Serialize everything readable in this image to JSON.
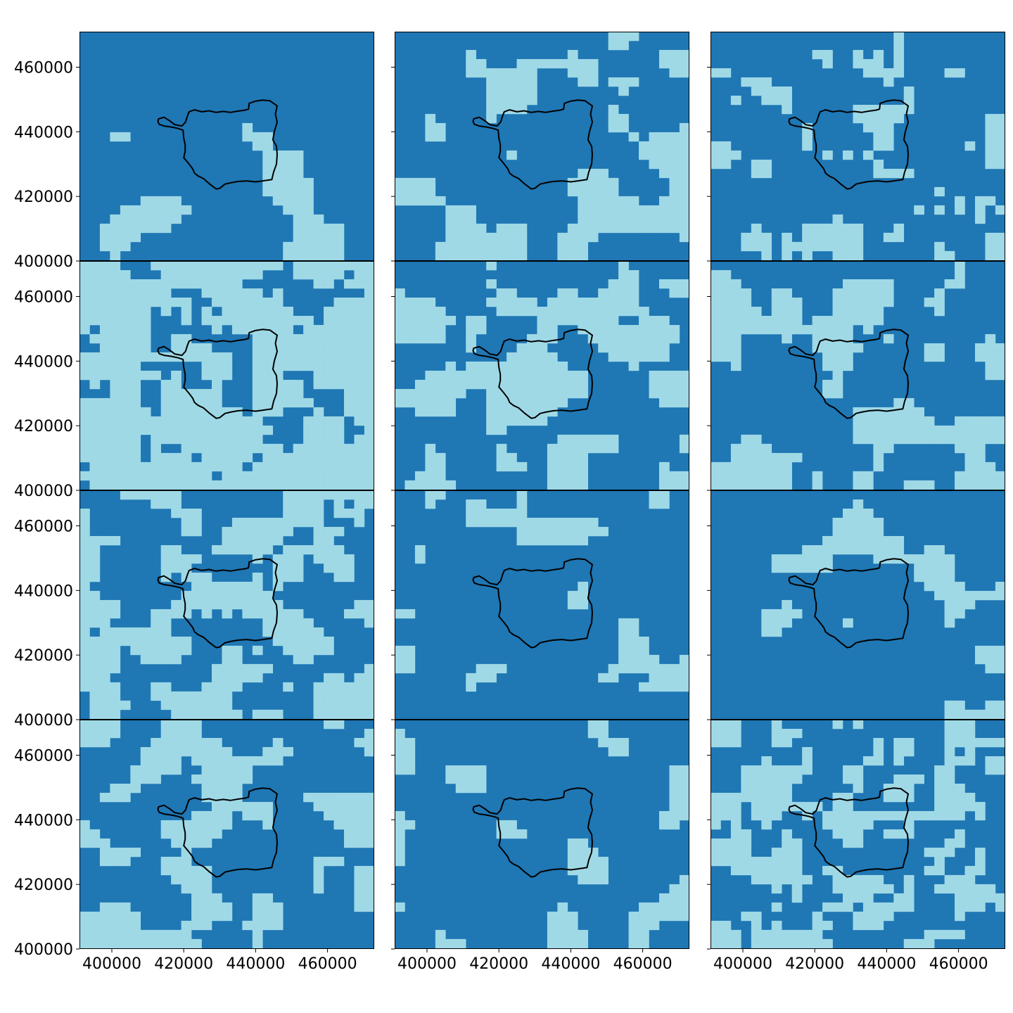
{
  "chart_data": {
    "type": "heatmap",
    "layout": {
      "rows": 4,
      "cols": 3
    },
    "title": "",
    "xlabel": "",
    "ylabel": "",
    "xlim": [
      391000,
      473000
    ],
    "ylim": [
      400000,
      471000
    ],
    "x_ticks": [
      400000,
      420000,
      440000,
      460000
    ],
    "x_tick_labels": [
      "400000",
      "420000",
      "440000",
      "460000"
    ],
    "y_ticks": [
      400000,
      420000,
      440000,
      460000
    ],
    "y_tick_labels": [
      "400000",
      "420000",
      "440000",
      "460000"
    ],
    "grid": false,
    "legend": null,
    "grid_cells": {
      "cols": 29,
      "rows": 25,
      "cell_size": 2830
    },
    "colors": {
      "class_0": "#1f77b4",
      "class_1": "#9fd9e6",
      "boundary": "#000000"
    },
    "boundary_polygon": [
      [
        413000,
        444000
      ],
      [
        414500,
        444500
      ],
      [
        416000,
        443500
      ],
      [
        417500,
        442200
      ],
      [
        419500,
        441800
      ],
      [
        420500,
        443000
      ],
      [
        421000,
        444800
      ],
      [
        421500,
        446200
      ],
      [
        423000,
        446800
      ],
      [
        425000,
        446200
      ],
      [
        427000,
        446500
      ],
      [
        429000,
        446000
      ],
      [
        431000,
        446300
      ],
      [
        433000,
        446000
      ],
      [
        435000,
        446400
      ],
      [
        437000,
        446700
      ],
      [
        438000,
        447000
      ],
      [
        438200,
        448800
      ],
      [
        440000,
        449500
      ],
      [
        442000,
        449800
      ],
      [
        444000,
        449600
      ],
      [
        446000,
        448000
      ],
      [
        445500,
        445500
      ],
      [
        446000,
        443000
      ],
      [
        445200,
        440000
      ],
      [
        444800,
        437500
      ],
      [
        445800,
        435500
      ],
      [
        446000,
        433000
      ],
      [
        445800,
        430000
      ],
      [
        445000,
        427500
      ],
      [
        444500,
        425200
      ],
      [
        442000,
        424800
      ],
      [
        440000,
        424500
      ],
      [
        437500,
        424800
      ],
      [
        435000,
        424600
      ],
      [
        433000,
        424200
      ],
      [
        431500,
        423800
      ],
      [
        430000,
        422500
      ],
      [
        429000,
        422300
      ],
      [
        427000,
        424000
      ],
      [
        425500,
        425500
      ],
      [
        424000,
        426300
      ],
      [
        423000,
        427200
      ],
      [
        422500,
        428500
      ],
      [
        421500,
        430000
      ],
      [
        420000,
        432000
      ],
      [
        420400,
        434000
      ],
      [
        420400,
        436000
      ],
      [
        420000,
        438000
      ],
      [
        419800,
        440500
      ],
      [
        418500,
        441000
      ],
      [
        416500,
        441500
      ],
      [
        414500,
        441800
      ],
      [
        413200,
        442300
      ],
      [
        412800,
        443200
      ]
    ],
    "panels": [
      {
        "seed": 11,
        "p_light": 0.13,
        "smooth": 6
      },
      {
        "seed": 23,
        "p_light": 0.3,
        "smooth": 3
      },
      {
        "seed": 37,
        "p_light": 0.2,
        "smooth": 1
      },
      {
        "seed": 41,
        "p_light": 0.78,
        "smooth": 1
      },
      {
        "seed": 53,
        "p_light": 0.42,
        "smooth": 2
      },
      {
        "seed": 67,
        "p_light": 0.35,
        "smooth": 2
      },
      {
        "seed": 71,
        "p_light": 0.48,
        "smooth": 1
      },
      {
        "seed": 83,
        "p_light": 0.14,
        "smooth": 2
      },
      {
        "seed": 97,
        "p_light": 0.15,
        "smooth": 3
      },
      {
        "seed": 101,
        "p_light": 0.36,
        "smooth": 2
      },
      {
        "seed": 113,
        "p_light": 0.16,
        "smooth": 3
      },
      {
        "seed": 127,
        "p_light": 0.42,
        "smooth": 1
      }
    ]
  }
}
